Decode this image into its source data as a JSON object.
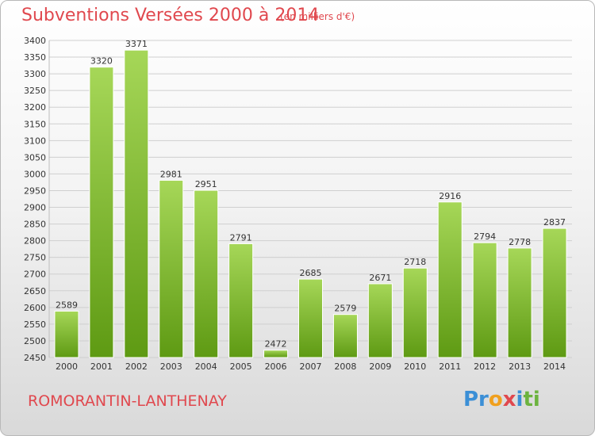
{
  "header": {
    "title": "Subventions Versées 2000 à 2014",
    "subtitle": "(en milliers d'€)"
  },
  "footer": {
    "town": "ROMORANTIN-LANTHENAY",
    "logo": [
      "Pr",
      "o",
      "x",
      "i",
      "t",
      "i"
    ]
  },
  "colors": {
    "bar_top": "#a6d758",
    "bar_bottom": "#5e9a13",
    "text_accent": "#e0484e"
  },
  "chart_data": {
    "type": "bar",
    "title": "Subventions Versées 2000 à 2014",
    "subtitle": "(en milliers d'€)",
    "categories": [
      "2000",
      "2001",
      "2002",
      "2003",
      "2004",
      "2005",
      "2006",
      "2007",
      "2008",
      "2009",
      "2010",
      "2011",
      "2012",
      "2013",
      "2014"
    ],
    "values": [
      2589,
      3320,
      3371,
      2981,
      2951,
      2791,
      2472,
      2685,
      2579,
      2671,
      2718,
      2916,
      2794,
      2778,
      2837
    ],
    "ylim": [
      2450,
      3400
    ],
    "yticks": [
      2450,
      2500,
      2550,
      2600,
      2650,
      2700,
      2750,
      2800,
      2850,
      2900,
      2950,
      3000,
      3050,
      3100,
      3150,
      3200,
      3250,
      3300,
      3350,
      3400
    ],
    "grid": true,
    "legend": "none"
  }
}
